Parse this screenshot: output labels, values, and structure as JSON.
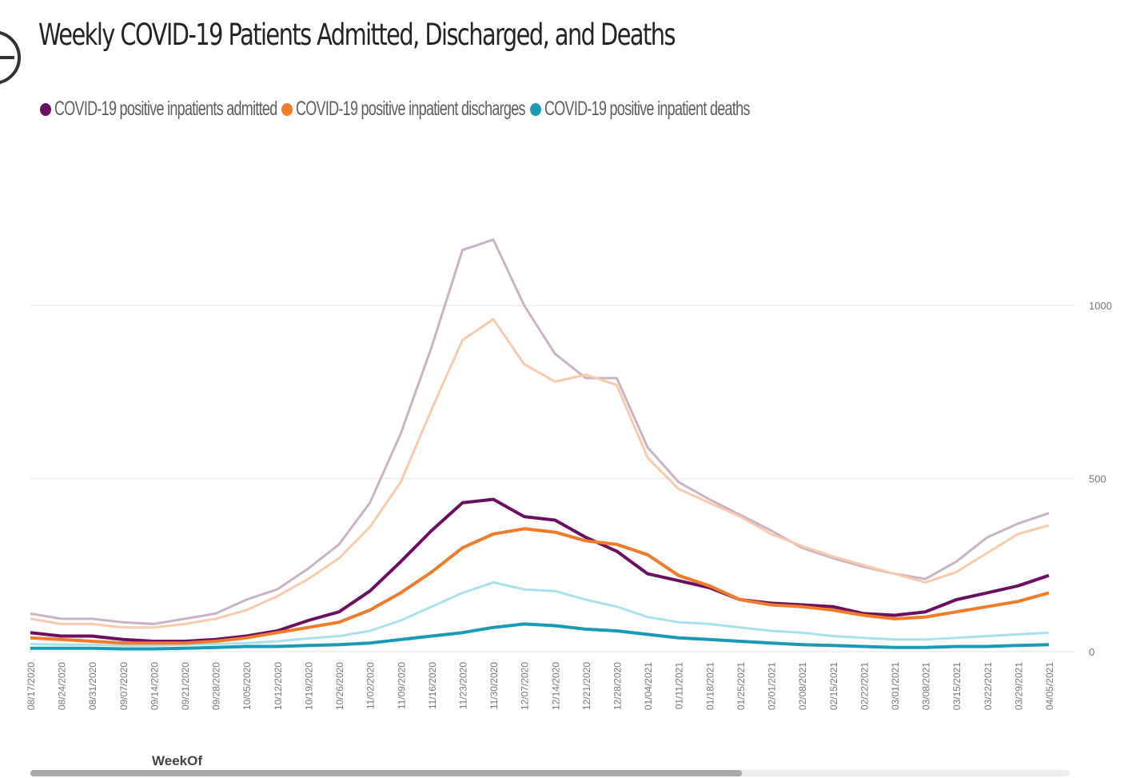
{
  "header": {
    "title": "Weekly COVID-19 Patients Admitted, Discharged, and Deaths",
    "focus_icon": "focus-mode-icon"
  },
  "colors": {
    "admitted": "#6b1060",
    "discharges": "#f07b2a",
    "deaths": "#1a9ab5",
    "admitted_faded": "#c8b2c6",
    "discharges_faded": "#f8c9ad",
    "deaths_faded": "#a9e1ea",
    "grid": "#f0f0f0",
    "axis_text": "#777777"
  },
  "chart_data": {
    "type": "line",
    "title": "Weekly COVID-19 Patients Admitted, Discharged, and Deaths",
    "xlabel": "WeekOf",
    "ylabel": "",
    "ylim": [
      0,
      1250
    ],
    "yticks": [
      0,
      500,
      1000
    ],
    "y_axis_side": "right",
    "grid": true,
    "legend_position": "top-left",
    "x": [
      "08/17/2020",
      "08/24/2020",
      "08/31/2020",
      "09/07/2020",
      "09/14/2020",
      "09/21/2020",
      "09/28/2020",
      "10/05/2020",
      "10/12/2020",
      "10/19/2020",
      "10/26/2020",
      "11/02/2020",
      "11/09/2020",
      "11/16/2020",
      "11/23/2020",
      "11/30/2020",
      "12/07/2020",
      "12/14/2020",
      "12/21/2020",
      "12/28/2020",
      "01/04/2021",
      "01/11/2021",
      "01/18/2021",
      "01/25/2021",
      "02/01/2021",
      "02/08/2021",
      "02/15/2021",
      "02/22/2021",
      "03/01/2021",
      "03/08/2021",
      "03/15/2021",
      "03/22/2021",
      "03/29/2021",
      "04/05/2021"
    ],
    "series": [
      {
        "name": "COVID-19 positive inpatients admitted",
        "color_key": "admitted",
        "values": [
          55,
          45,
          45,
          35,
          30,
          30,
          35,
          45,
          60,
          90,
          115,
          175,
          260,
          350,
          430,
          440,
          390,
          380,
          330,
          290,
          225,
          205,
          185,
          150,
          140,
          135,
          130,
          110,
          105,
          115,
          150,
          170,
          190,
          220
        ]
      },
      {
        "name": "COVID-19 positive inpatient discharges",
        "color_key": "discharges",
        "values": [
          40,
          35,
          30,
          25,
          25,
          25,
          30,
          40,
          55,
          70,
          85,
          120,
          170,
          230,
          300,
          340,
          355,
          345,
          320,
          310,
          280,
          220,
          190,
          150,
          135,
          130,
          120,
          105,
          95,
          100,
          115,
          130,
          145,
          170
        ]
      },
      {
        "name": "COVID-19 positive inpatient deaths",
        "color_key": "deaths",
        "values": [
          10,
          10,
          10,
          8,
          8,
          10,
          12,
          15,
          15,
          18,
          20,
          25,
          35,
          45,
          55,
          70,
          80,
          75,
          65,
          60,
          50,
          40,
          35,
          30,
          25,
          20,
          18,
          15,
          12,
          12,
          15,
          15,
          18,
          20
        ]
      },
      {
        "name": "",
        "color_key": "admitted_faded",
        "values": [
          110,
          95,
          95,
          85,
          80,
          95,
          110,
          150,
          180,
          240,
          310,
          430,
          630,
          880,
          1160,
          1190,
          1000,
          860,
          790,
          790,
          590,
          490,
          440,
          395,
          350,
          300,
          270,
          245,
          225,
          210,
          260,
          330,
          370,
          400
        ]
      },
      {
        "name": "",
        "color_key": "discharges_faded",
        "values": [
          95,
          80,
          80,
          70,
          70,
          80,
          95,
          120,
          160,
          210,
          270,
          360,
          490,
          700,
          900,
          960,
          830,
          780,
          800,
          770,
          560,
          470,
          430,
          390,
          340,
          305,
          275,
          250,
          225,
          200,
          230,
          285,
          340,
          365
        ]
      },
      {
        "name": "",
        "color_key": "deaths_faded",
        "values": [
          22,
          20,
          20,
          18,
          18,
          20,
          22,
          25,
          30,
          38,
          45,
          60,
          90,
          130,
          170,
          200,
          180,
          175,
          150,
          130,
          100,
          85,
          80,
          70,
          60,
          55,
          45,
          40,
          35,
          35,
          40,
          45,
          50,
          55
        ]
      }
    ]
  }
}
